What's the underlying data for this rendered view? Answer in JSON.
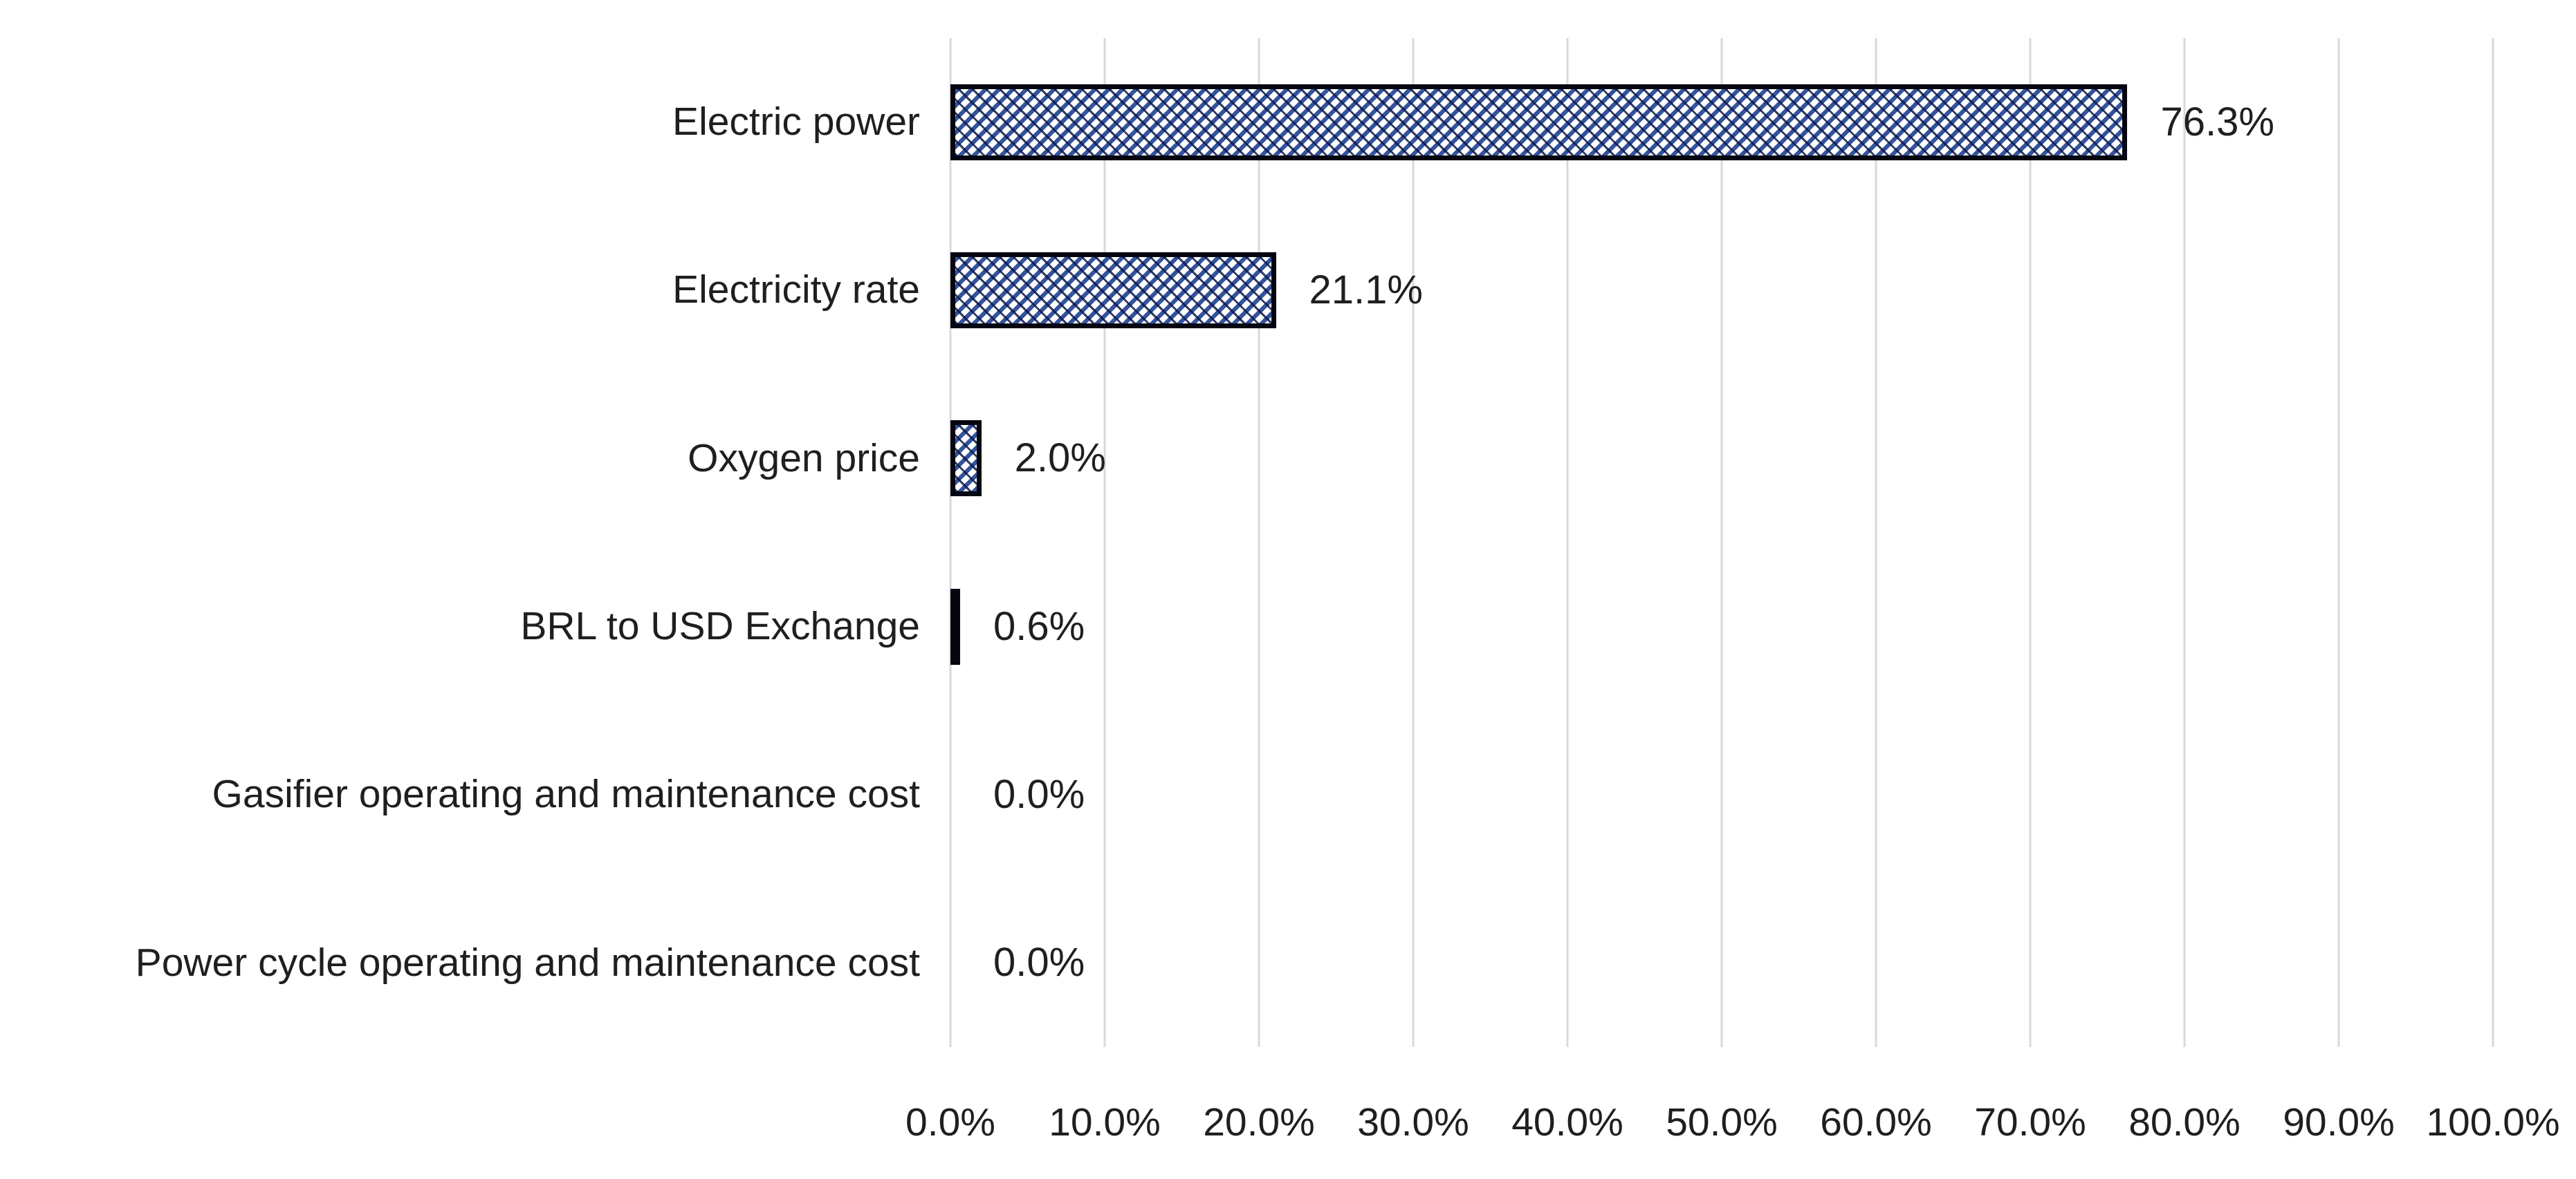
{
  "chart_data": {
    "type": "bar",
    "orientation": "horizontal",
    "title": "",
    "xlabel": "",
    "ylabel": "",
    "categories": [
      "Electric power",
      "Electricity rate",
      "Oxygen price",
      "BRL to USD Exchange",
      "Gasifier operating and maintenance cost",
      "Power cycle operating and maintenance cost"
    ],
    "values": [
      76.3,
      21.1,
      2.0,
      0.6,
      0.0,
      0.0
    ],
    "data_labels": [
      "76.3%",
      "21.1%",
      "2.0%",
      "0.6%",
      "0.0%",
      "0.0%"
    ],
    "x_ticks": [
      "0.0%",
      "10.0%",
      "20.0%",
      "30.0%",
      "40.0%",
      "50.0%",
      "60.0%",
      "70.0%",
      "80.0%",
      "90.0%",
      "100.0%"
    ],
    "xlim": [
      0,
      100
    ],
    "grid": "vertical-only",
    "legend": "none",
    "bar_style": "white fill with navy upward-diagonal hatch, black border",
    "colors": {
      "hatch_stripe": "#33539C",
      "hatch_dot": "#0D1A4A",
      "bar_border": "#05060F",
      "gridline": "#D9D9D9",
      "text": "#1F1F1F",
      "background": "#FFFFFF"
    }
  }
}
